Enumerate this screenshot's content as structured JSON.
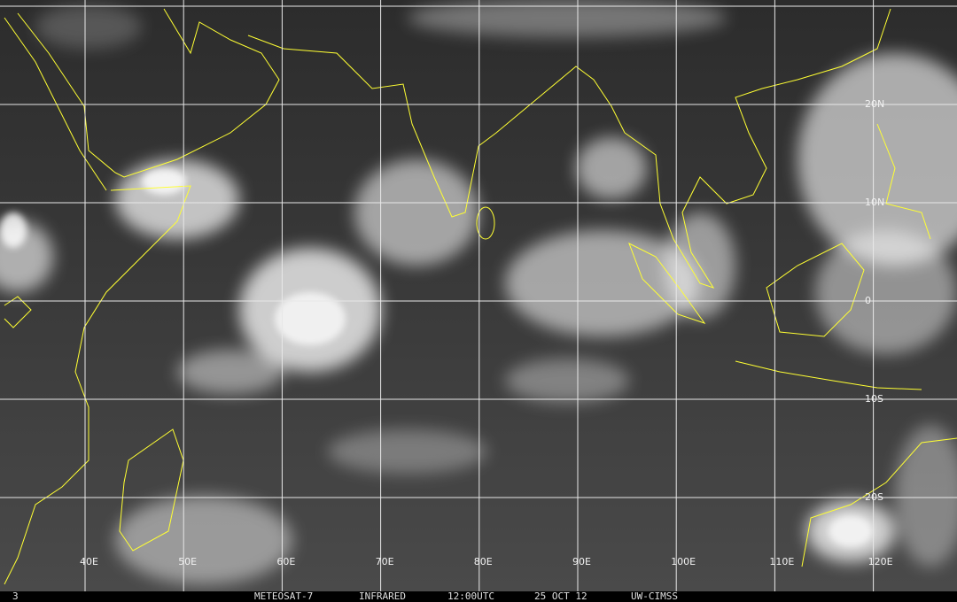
{
  "longitude_labels": [
    "40E",
    "50E",
    "60E",
    "70E",
    "80E",
    "90E",
    "100E",
    "110E",
    "120E"
  ],
  "latitude_labels": [
    "20N",
    "10N",
    "0",
    "10S",
    "20S"
  ],
  "footer": {
    "frame": "3",
    "satellite": "METEOSAT-7",
    "channel": "INFRARED",
    "time": "12:00UTC",
    "date": "25 OCT 12",
    "source": "UW-CIMSS"
  }
}
